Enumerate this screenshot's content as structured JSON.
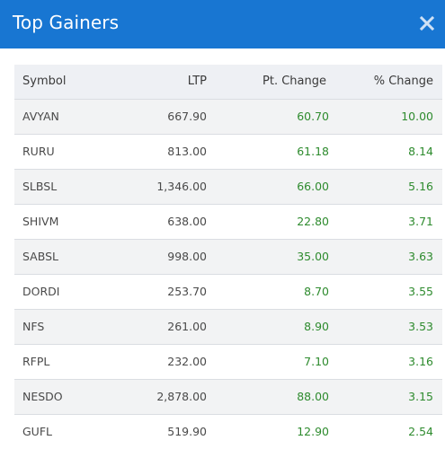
{
  "modal": {
    "title": "Top Gainers",
    "close_icon": "close-icon"
  },
  "colors": {
    "header_bg": "#1876d2",
    "gain_text": "#2e8b2e",
    "row_alt": "#f2f3f4",
    "thead_bg": "#eef0f4"
  },
  "table": {
    "headers": [
      "Symbol",
      "LTP",
      "Pt. Change",
      "% Change"
    ],
    "rows": [
      {
        "symbol": "AVYAN",
        "ltp": "667.90",
        "pt_change": "60.70",
        "pct_change": "10.00"
      },
      {
        "symbol": "RURU",
        "ltp": "813.00",
        "pt_change": "61.18",
        "pct_change": "8.14"
      },
      {
        "symbol": "SLBSL",
        "ltp": "1,346.00",
        "pt_change": "66.00",
        "pct_change": "5.16"
      },
      {
        "symbol": "SHIVM",
        "ltp": "638.00",
        "pt_change": "22.80",
        "pct_change": "3.71"
      },
      {
        "symbol": "SABSL",
        "ltp": "998.00",
        "pt_change": "35.00",
        "pct_change": "3.63"
      },
      {
        "symbol": "DORDI",
        "ltp": "253.70",
        "pt_change": "8.70",
        "pct_change": "3.55"
      },
      {
        "symbol": "NFS",
        "ltp": "261.00",
        "pt_change": "8.90",
        "pct_change": "3.53"
      },
      {
        "symbol": "RFPL",
        "ltp": "232.00",
        "pt_change": "7.10",
        "pct_change": "3.16"
      },
      {
        "symbol": "NESDO",
        "ltp": "2,878.00",
        "pt_change": "88.00",
        "pct_change": "3.15"
      },
      {
        "symbol": "GUFL",
        "ltp": "519.90",
        "pt_change": "12.90",
        "pct_change": "2.54"
      }
    ]
  }
}
